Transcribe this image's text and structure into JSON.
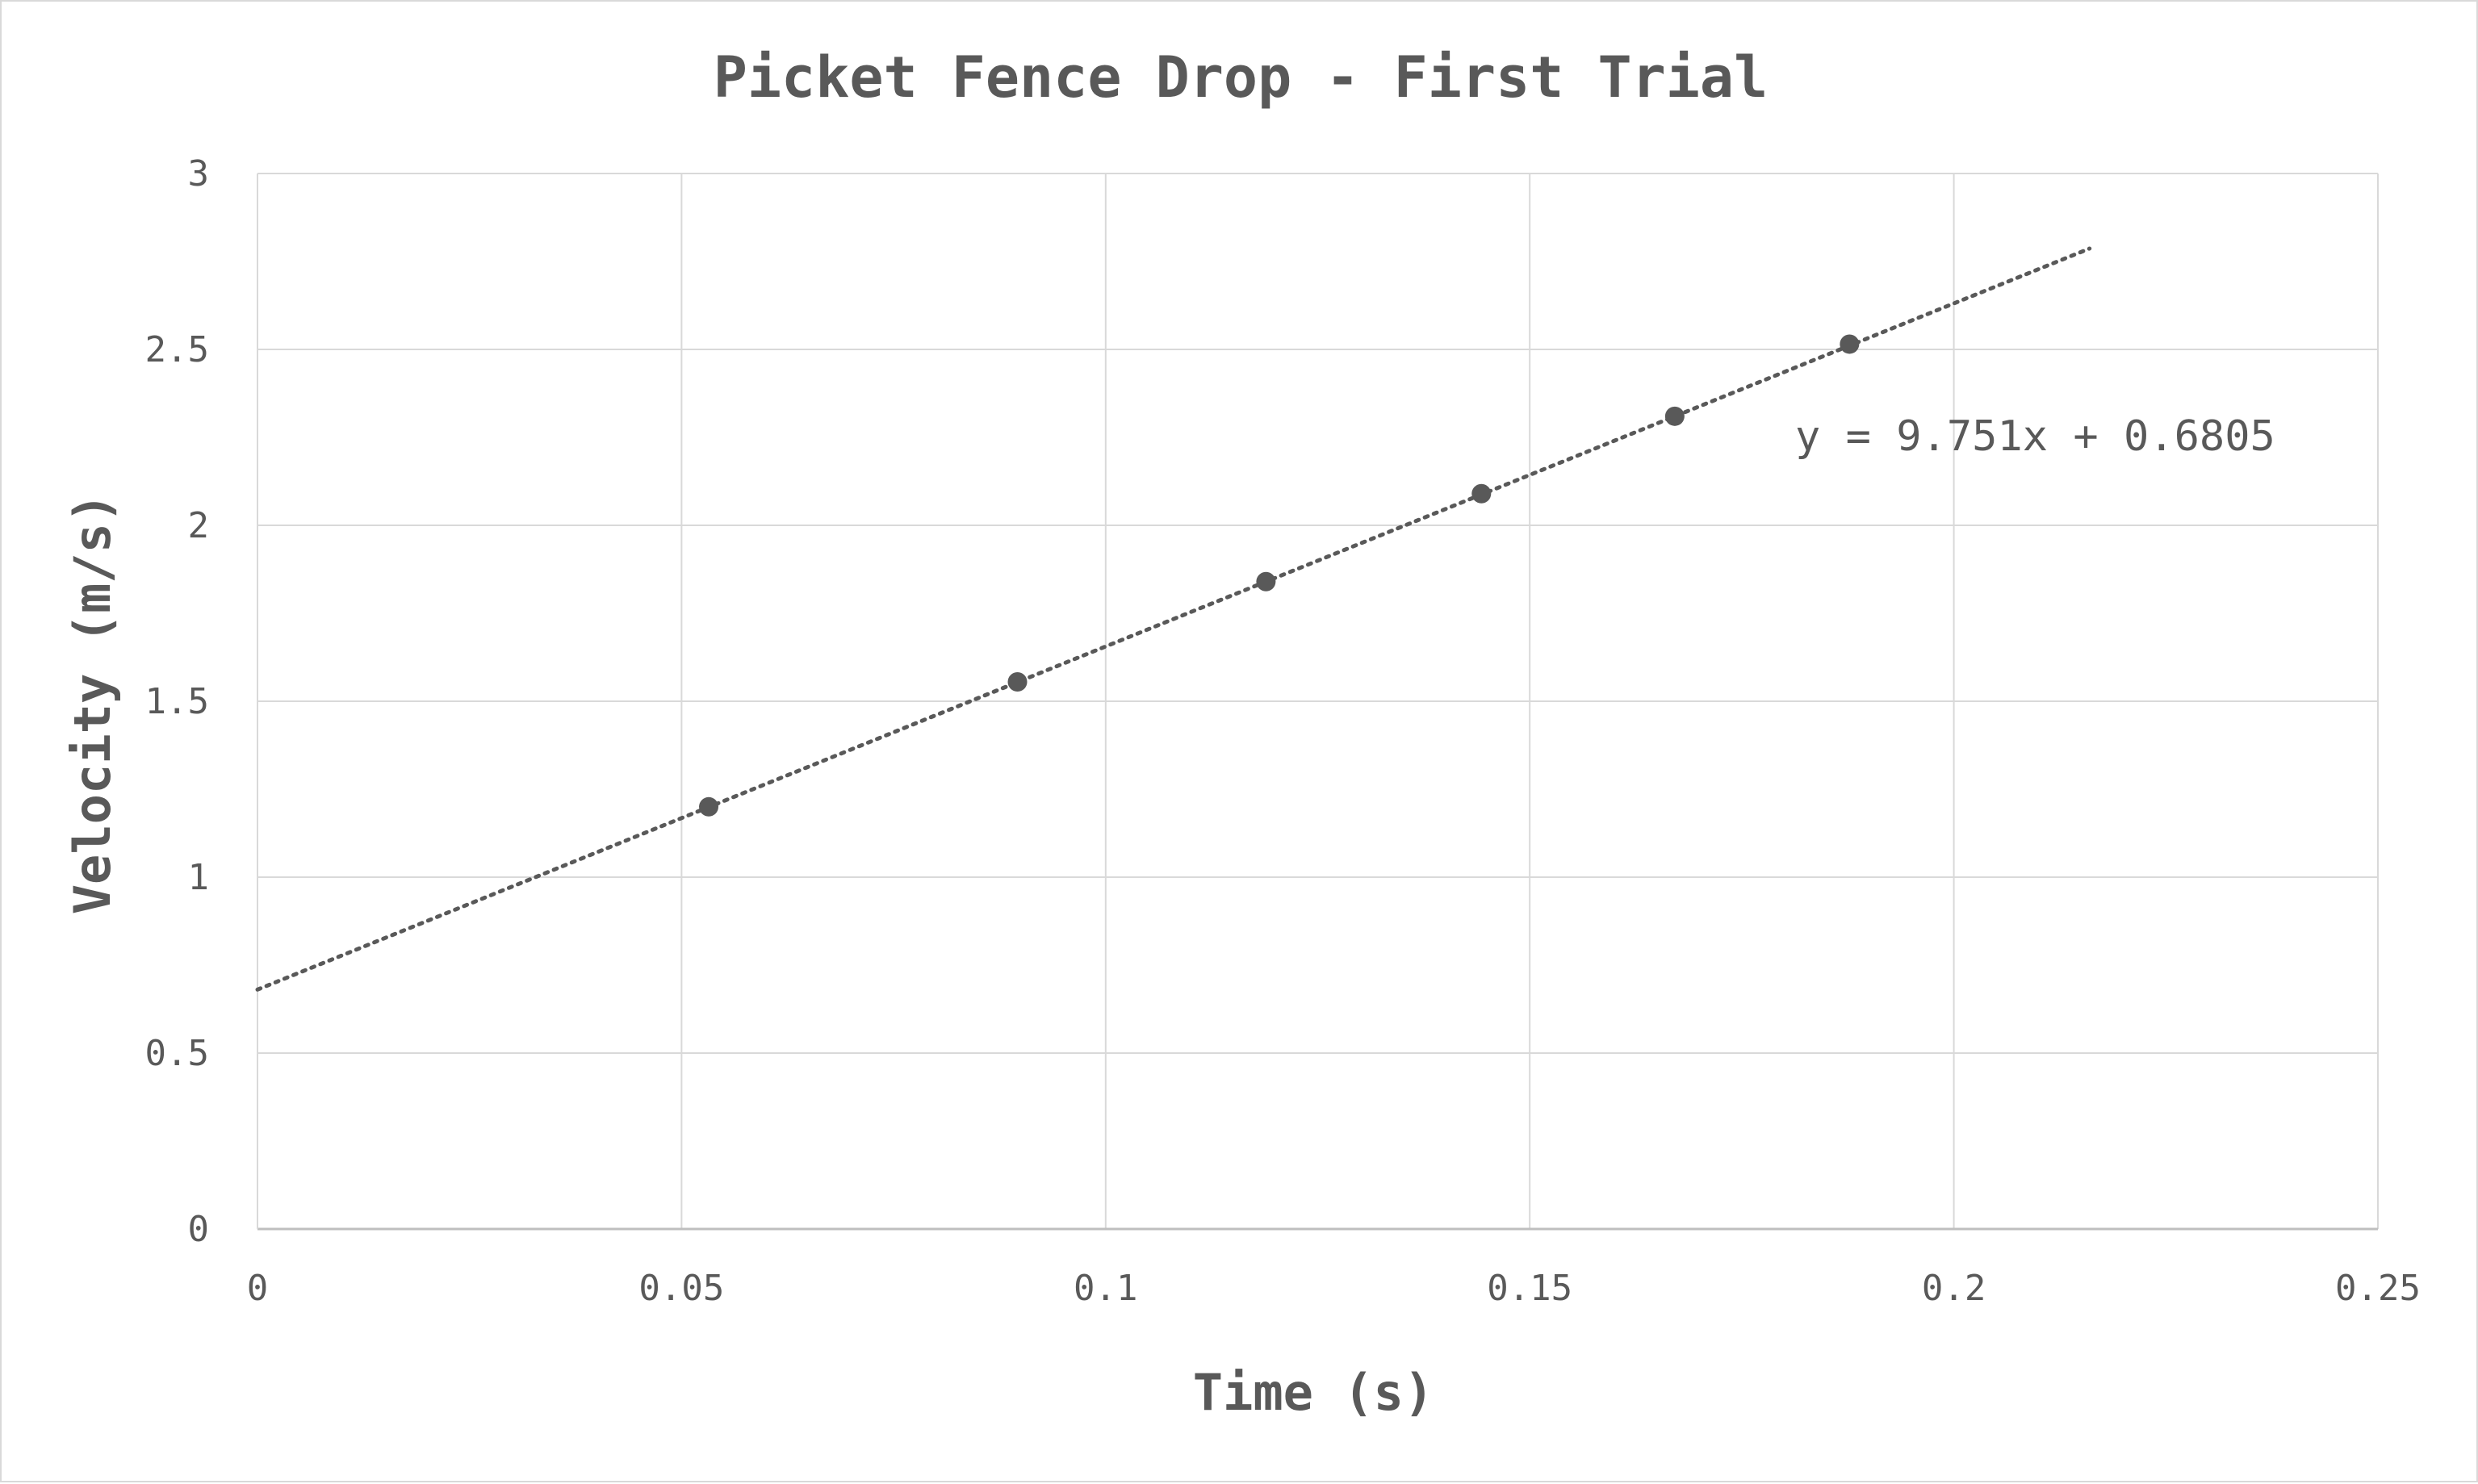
{
  "chart_data": {
    "type": "scatter",
    "title": "Picket Fence Drop - First Trial",
    "xlabel": "Time (s)",
    "ylabel": "Velocity (m/s)",
    "xlim": [
      0,
      0.25
    ],
    "ylim": [
      0,
      3
    ],
    "x_ticks": [
      0,
      0.05,
      0.1,
      0.15,
      0.2,
      0.25
    ],
    "y_ticks": [
      0,
      0.5,
      1,
      1.5,
      2,
      2.5,
      3
    ],
    "x_tick_labels": [
      "0",
      "0.05",
      "0.1",
      "0.15",
      "0.2",
      "0.25"
    ],
    "y_tick_labels": [
      "0",
      "0.5",
      "1",
      "1.5",
      "2",
      "2.5",
      "3"
    ],
    "grid": true,
    "series": [
      {
        "points": [
          {
            "x": 0.0532,
            "y": 1.2
          },
          {
            "x": 0.0896,
            "y": 1.555
          },
          {
            "x": 0.1189,
            "y": 1.84
          },
          {
            "x": 0.1443,
            "y": 2.09
          },
          {
            "x": 0.1671,
            "y": 2.31
          },
          {
            "x": 0.1877,
            "y": 2.515
          }
        ],
        "color": "#595959"
      }
    ],
    "trendline": {
      "type": "linear",
      "slope": 9.751,
      "intercept": 0.6805,
      "x_range": [
        0,
        0.216
      ],
      "style": "dotted",
      "color": "#595959",
      "equation_label": "y = 9.751x + 0.6805"
    }
  }
}
